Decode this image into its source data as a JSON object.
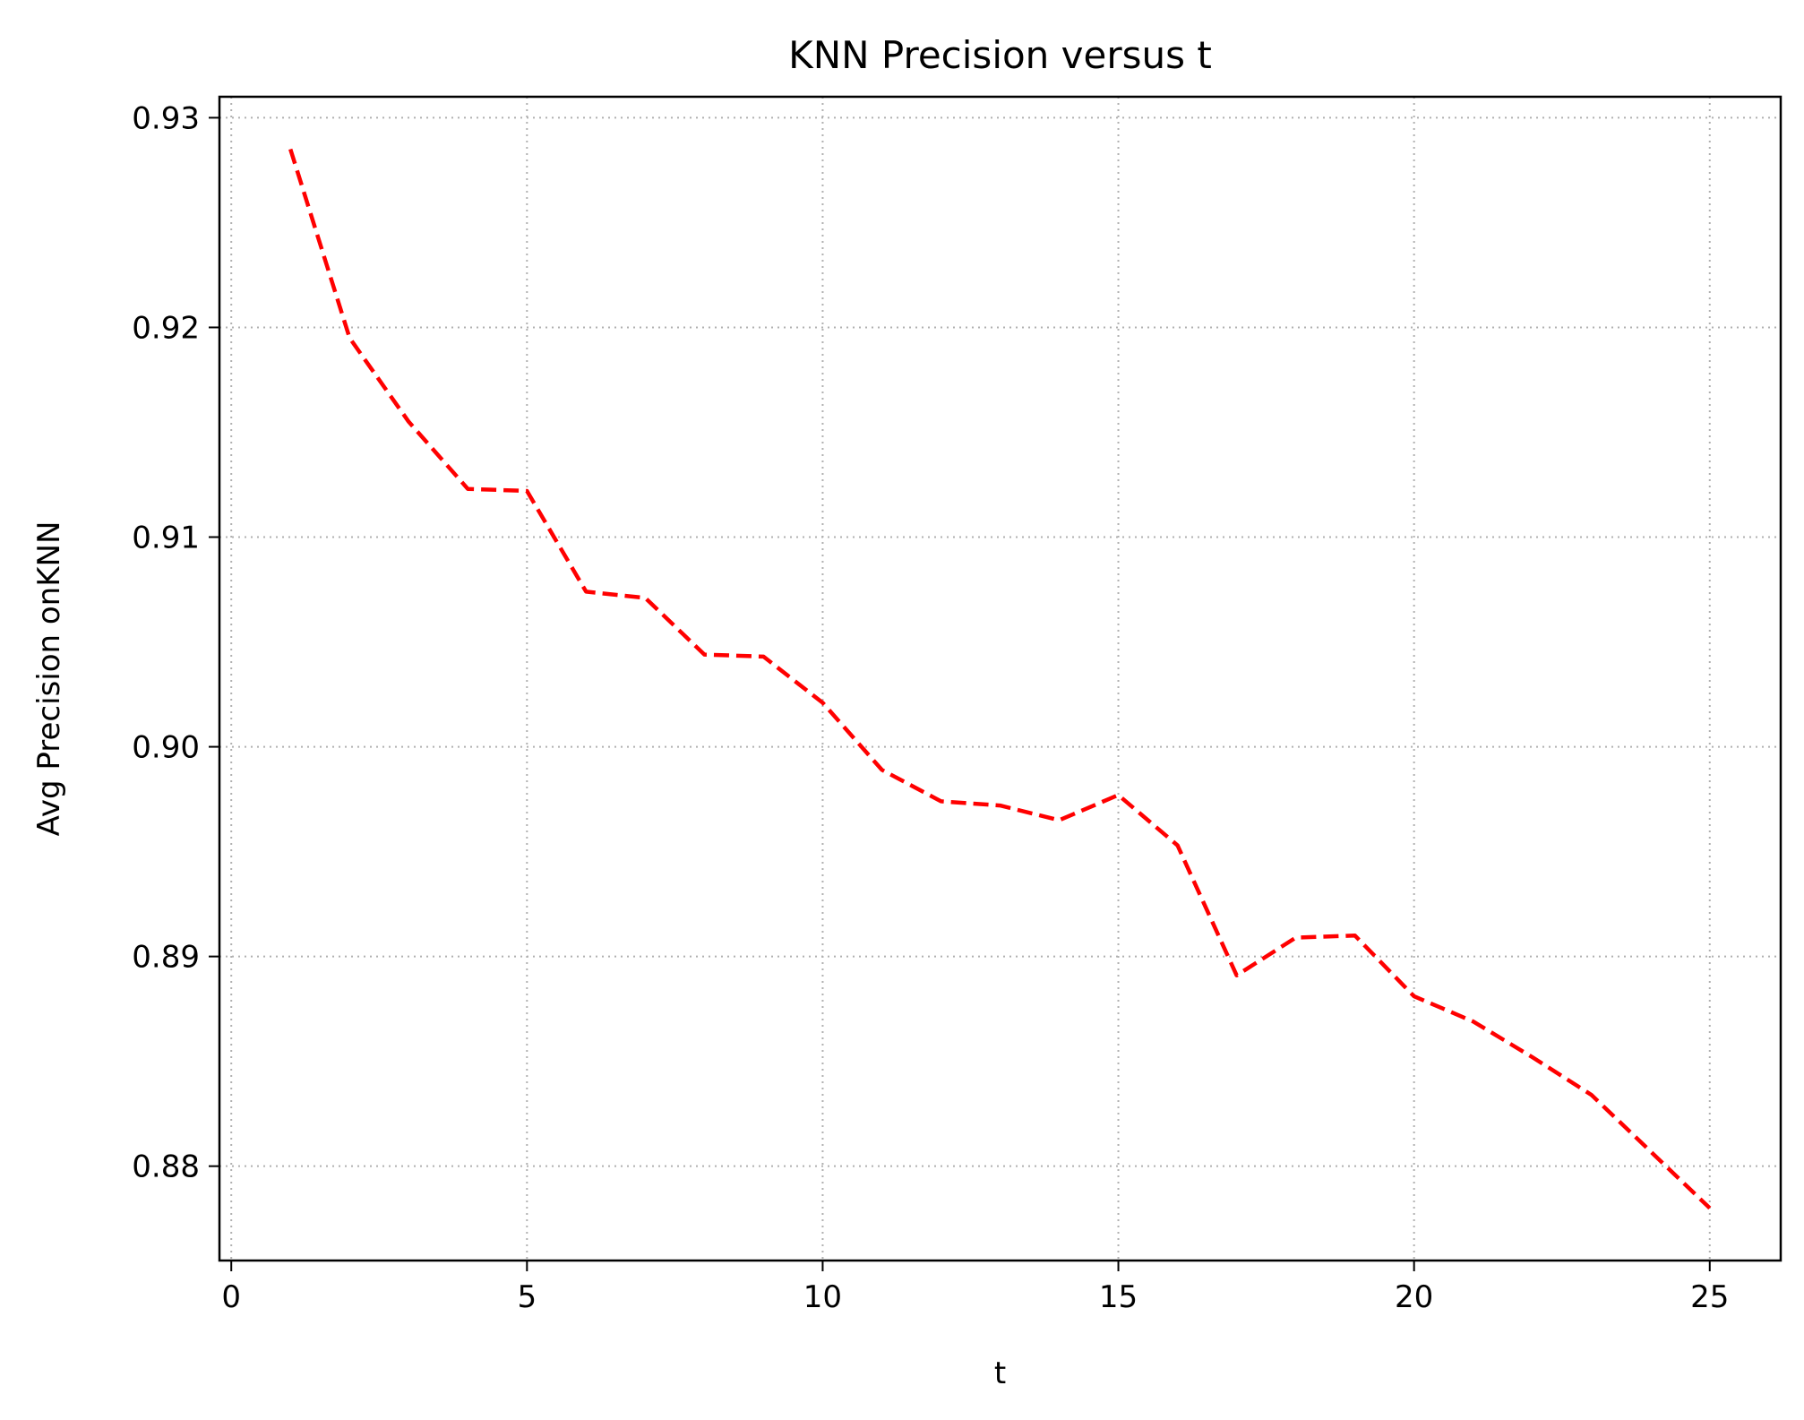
{
  "chart_data": {
    "type": "line",
    "title": "KNN Precision versus t",
    "xlabel": "t",
    "ylabel": "Avg Precision onKNN",
    "xlim": [
      -0.2,
      26.2
    ],
    "ylim": [
      0.8755,
      0.931
    ],
    "xticks": [
      0,
      5,
      10,
      15,
      20,
      25
    ],
    "xtick_labels": [
      "0",
      "5",
      "10",
      "15",
      "20",
      "25"
    ],
    "yticks": [
      0.88,
      0.89,
      0.9,
      0.91,
      0.92,
      0.93
    ],
    "ytick_labels": [
      "0.88",
      "0.89",
      "0.90",
      "0.91",
      "0.92",
      "0.93"
    ],
    "grid": true,
    "series": [
      {
        "color": "#ff0000",
        "line_style": "dashed",
        "x": [
          1,
          2,
          3,
          4,
          5,
          6,
          7,
          8,
          9,
          10,
          11,
          12,
          13,
          14,
          15,
          16,
          17,
          18,
          19,
          20,
          21,
          22,
          23,
          24,
          25
        ],
        "y": [
          0.9285,
          0.9195,
          0.9155,
          0.9123,
          0.9122,
          0.9074,
          0.9071,
          0.9044,
          0.9043,
          0.9021,
          0.8989,
          0.8974,
          0.8972,
          0.8965,
          0.8977,
          0.8953,
          0.8891,
          0.8909,
          0.891,
          0.8881,
          0.8869,
          0.8852,
          0.8834,
          0.8807,
          0.878
        ]
      }
    ]
  }
}
